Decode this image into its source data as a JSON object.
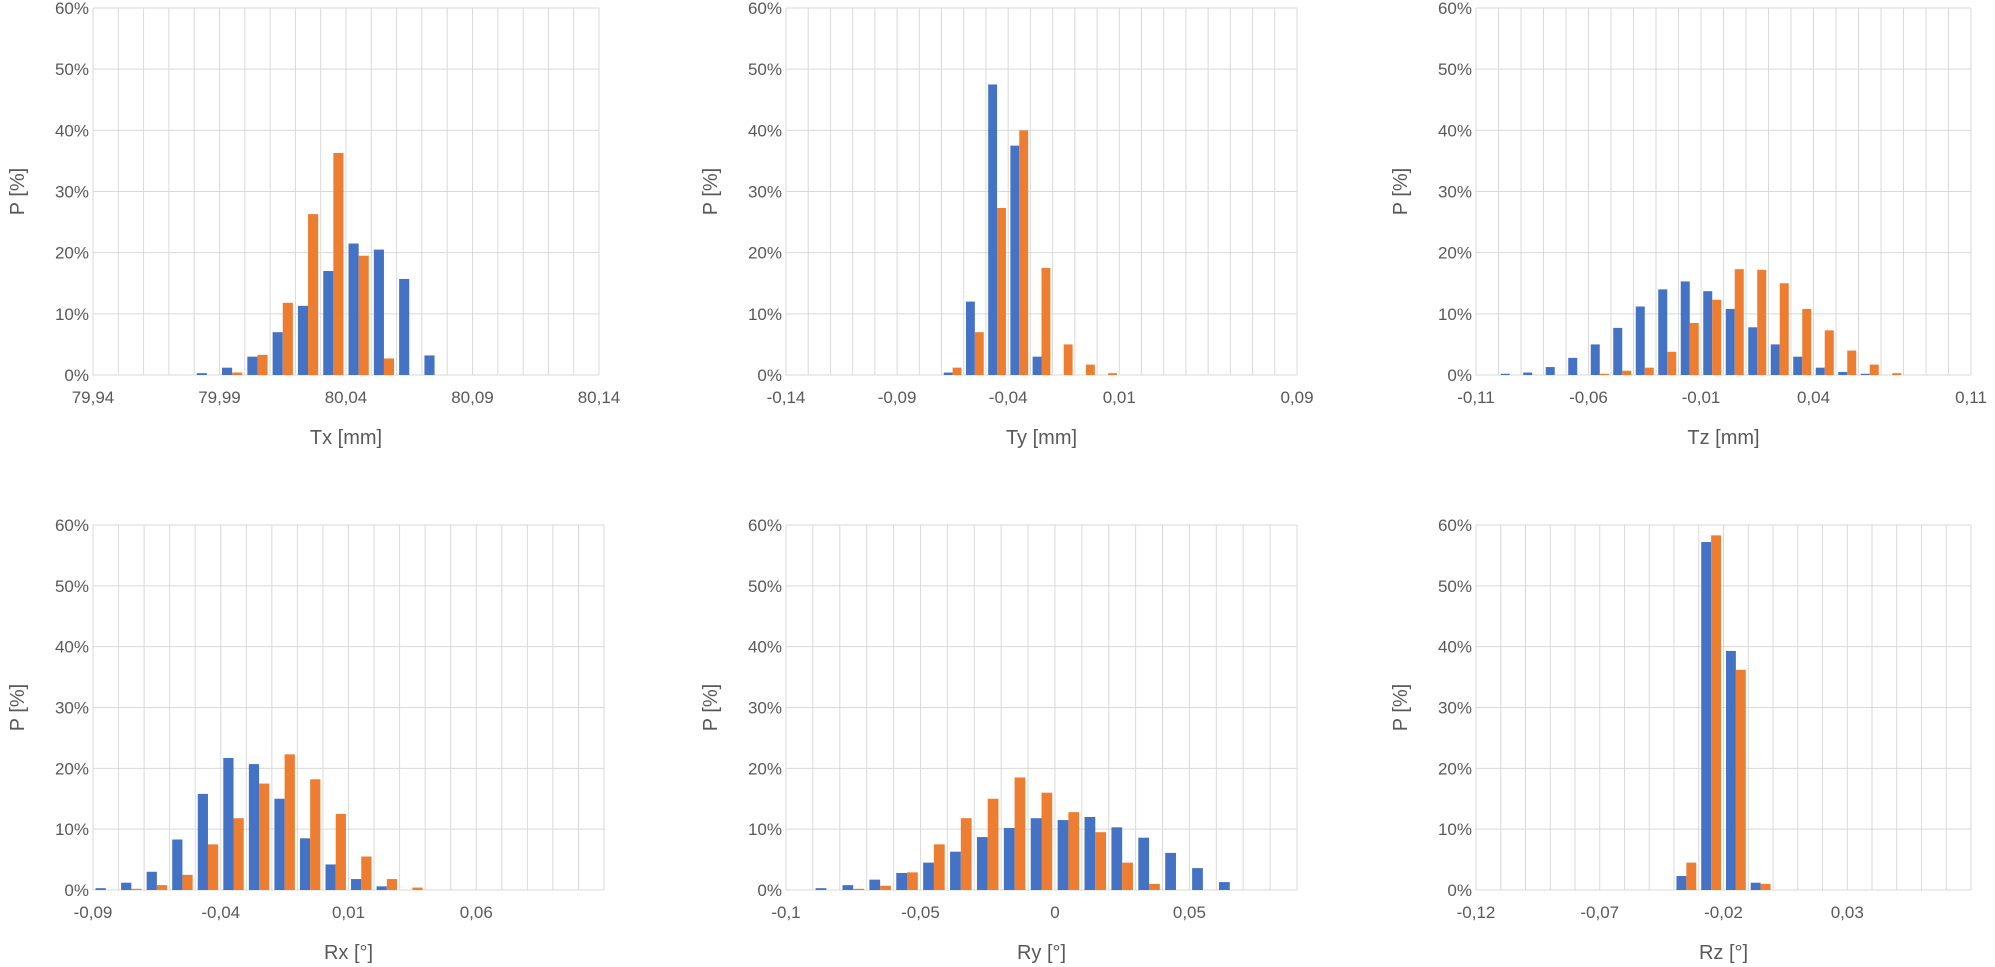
{
  "colors": {
    "series_a": "#4472c4",
    "series_b": "#ed7d31",
    "grid": "#d9d9d9",
    "text": "#595959"
  },
  "chart_data": [
    {
      "type": "bar",
      "xlabel": "Tx [mm]",
      "ylabel": "P [%]",
      "xlim": [
        79.94,
        80.14
      ],
      "ylim": [
        0,
        60
      ],
      "xticks": [
        79.94,
        79.99,
        80.04,
        80.09,
        80.14
      ],
      "xtick_labels": [
        "79,94",
        "79,99",
        "80,04",
        "80,09",
        "80,14"
      ],
      "yticks": [
        0,
        10,
        20,
        30,
        40,
        50,
        60
      ],
      "ytick_labels": [
        "0%",
        "10%",
        "20%",
        "30%",
        "40%",
        "50%",
        "60%"
      ],
      "bin_width": 0.01,
      "grid": true,
      "x": [
        79.94,
        79.95,
        79.96,
        79.97,
        79.98,
        79.99,
        80.0,
        80.01,
        80.02,
        80.03,
        80.04,
        80.05,
        80.06,
        80.07,
        80.08,
        80.09,
        80.1,
        80.11,
        80.12,
        80.13
      ],
      "series": [
        {
          "values": [
            0,
            0,
            0,
            0,
            0.3,
            1.2,
            3,
            7,
            11.3,
            17,
            21.5,
            20.5,
            15.7,
            3.2,
            0,
            0,
            0,
            0,
            0,
            0
          ]
        },
        {
          "values": [
            0,
            0,
            0,
            0,
            0,
            0.4,
            3.3,
            11.8,
            26.3,
            36.3,
            19.5,
            2.7,
            0,
            0,
            0,
            0,
            0,
            0,
            0,
            0
          ]
        }
      ]
    },
    {
      "type": "bar",
      "xlabel": "Ty [mm]",
      "ylabel": "P [%]",
      "xlim": [
        -0.14,
        0.09
      ],
      "ylim": [
        0,
        60
      ],
      "xticks": [
        -0.14,
        -0.09,
        -0.04,
        0.01,
        0.09
      ],
      "xtick_labels": [
        "-0,14",
        "-0,09",
        "-0,04",
        "0,01",
        "0,09"
      ],
      "yticks": [
        0,
        10,
        20,
        30,
        40,
        50,
        60
      ],
      "ytick_labels": [
        "0%",
        "10%",
        "20%",
        "30%",
        "40%",
        "50%",
        "60%"
      ],
      "bin_width": 0.01,
      "grid": true,
      "x": [
        -0.14,
        -0.13,
        -0.12,
        -0.11,
        -0.1,
        -0.09,
        -0.08,
        -0.07,
        -0.06,
        -0.05,
        -0.04,
        -0.03,
        -0.02,
        -0.01,
        0.0,
        0.01,
        0.02,
        0.03,
        0.04,
        0.05,
        0.06,
        0.07,
        0.08
      ],
      "series": [
        {
          "values": [
            0,
            0,
            0,
            0,
            0,
            0,
            0,
            0.4,
            12,
            47.5,
            37.5,
            3,
            0,
            0,
            0,
            0,
            0,
            0,
            0,
            0,
            0,
            0,
            0
          ]
        },
        {
          "values": [
            0,
            0,
            0,
            0,
            0,
            0,
            0,
            1.2,
            7,
            27.3,
            40,
            17.5,
            5,
            1.7,
            0.3,
            0,
            0,
            0,
            0,
            0,
            0,
            0,
            0
          ]
        }
      ]
    },
    {
      "type": "bar",
      "xlabel": "Tz [mm]",
      "ylabel": "P [%]",
      "xlim": [
        -0.11,
        0.11
      ],
      "ylim": [
        0,
        60
      ],
      "xticks": [
        -0.11,
        -0.06,
        -0.01,
        0.04,
        0.11
      ],
      "xtick_labels": [
        "-0,11",
        "-0,06",
        "-0,01",
        "0,04",
        "0,11"
      ],
      "yticks": [
        0,
        10,
        20,
        30,
        40,
        50,
        60
      ],
      "ytick_labels": [
        "0%",
        "10%",
        "20%",
        "30%",
        "40%",
        "50%",
        "60%"
      ],
      "bin_width": 0.01,
      "grid": true,
      "x": [
        -0.11,
        -0.1,
        -0.09,
        -0.08,
        -0.07,
        -0.06,
        -0.05,
        -0.04,
        -0.03,
        -0.02,
        -0.01,
        0.0,
        0.01,
        0.02,
        0.03,
        0.04,
        0.05,
        0.06,
        0.07,
        0.08,
        0.09,
        0.1
      ],
      "series": [
        {
          "values": [
            0,
            0.2,
            0.4,
            1.3,
            2.8,
            5,
            7.7,
            11.2,
            14,
            15.3,
            13.7,
            10.8,
            7.8,
            5,
            3,
            1.2,
            0.5,
            0.2,
            0,
            0,
            0,
            0
          ]
        },
        {
          "values": [
            0,
            0,
            0,
            0,
            0,
            0.2,
            0.7,
            1.2,
            3.8,
            8.5,
            12.3,
            17.3,
            17.2,
            15,
            10.8,
            7.3,
            4,
            1.7,
            0.3,
            0,
            0,
            0
          ]
        }
      ]
    },
    {
      "type": "bar",
      "xlabel": "Rx [°]",
      "ylabel": "P [%]",
      "xlim": [
        -0.09,
        0.11
      ],
      "ylim": [
        0,
        60
      ],
      "xticks": [
        -0.09,
        -0.04,
        0.01,
        0.06
      ],
      "xtick_labels": [
        "-0,09",
        "-0,04",
        "0,01",
        "0,06"
      ],
      "yticks": [
        0,
        10,
        20,
        30,
        40,
        50,
        60
      ],
      "ytick_labels": [
        "0%",
        "10%",
        "20%",
        "30%",
        "40%",
        "50%",
        "60%"
      ],
      "bin_width": 0.01,
      "grid": true,
      "x": [
        -0.09,
        -0.08,
        -0.07,
        -0.06,
        -0.05,
        -0.04,
        -0.03,
        -0.02,
        -0.01,
        0.0,
        0.01,
        0.02,
        0.03,
        0.04,
        0.05,
        0.06,
        0.07,
        0.08,
        0.09,
        0.1
      ],
      "series": [
        {
          "values": [
            0.3,
            1.2,
            3,
            8.3,
            15.8,
            21.7,
            20.7,
            15,
            8.5,
            4.2,
            1.8,
            0.6,
            0,
            0,
            0,
            0,
            0,
            0,
            0,
            0
          ]
        },
        {
          "values": [
            0,
            0.2,
            0.8,
            2.5,
            7.5,
            11.8,
            17.5,
            22.3,
            18.2,
            12.5,
            5.5,
            1.8,
            0.4,
            0,
            0,
            0,
            0,
            0,
            0,
            0
          ]
        }
      ]
    },
    {
      "type": "bar",
      "xlabel": "Ry [°]",
      "ylabel": "P [%]",
      "xlim": [
        -0.1,
        0.09
      ],
      "ylim": [
        0,
        60
      ],
      "xticks": [
        -0.1,
        -0.05,
        0,
        0.05
      ],
      "xtick_labels": [
        "-0,1",
        "-0,05",
        "0",
        "0,05"
      ],
      "yticks": [
        0,
        10,
        20,
        30,
        40,
        50,
        60
      ],
      "ytick_labels": [
        "0%",
        "10%",
        "20%",
        "30%",
        "40%",
        "50%",
        "60%"
      ],
      "bin_width": 0.01,
      "grid": true,
      "x": [
        -0.1,
        -0.09,
        -0.08,
        -0.07,
        -0.06,
        -0.05,
        -0.04,
        -0.03,
        -0.02,
        -0.01,
        0.0,
        0.01,
        0.02,
        0.03,
        0.04,
        0.05,
        0.06,
        0.07,
        0.08
      ],
      "series": [
        {
          "values": [
            0,
            0.3,
            0.8,
            1.7,
            2.8,
            4.5,
            6.3,
            8.7,
            10.2,
            11.8,
            11.5,
            12,
            10.3,
            8.6,
            6.1,
            3.6,
            1.3,
            0,
            0
          ]
        },
        {
          "values": [
            0,
            0,
            0.2,
            0.7,
            2.9,
            7.5,
            11.8,
            15,
            18.5,
            16,
            12.8,
            9.5,
            4.5,
            1,
            0,
            0,
            0,
            0,
            0
          ]
        }
      ]
    },
    {
      "type": "bar",
      "xlabel": "Rz [°]",
      "ylabel": "P [%]",
      "xlim": [
        -0.12,
        0.08
      ],
      "ylim": [
        0,
        60
      ],
      "xticks": [
        -0.12,
        -0.07,
        -0.02,
        0.03
      ],
      "xtick_labels": [
        "-0,12",
        "-0,07",
        "-0,02",
        "0,03"
      ],
      "yticks": [
        0,
        10,
        20,
        30,
        40,
        50,
        60
      ],
      "ytick_labels": [
        "0%",
        "10%",
        "20%",
        "30%",
        "40%",
        "50%",
        "60%"
      ],
      "bin_width": 0.01,
      "grid": true,
      "x": [
        -0.12,
        -0.11,
        -0.1,
        -0.09,
        -0.08,
        -0.07,
        -0.06,
        -0.05,
        -0.04,
        -0.03,
        -0.02,
        -0.01,
        0.0,
        0.01,
        0.02,
        0.03,
        0.04,
        0.05,
        0.06,
        0.07
      ],
      "series": [
        {
          "values": [
            0,
            0,
            0,
            0,
            0,
            0,
            0,
            0,
            2.3,
            57.2,
            39.3,
            1.2,
            0,
            0,
            0,
            0,
            0,
            0,
            0,
            0
          ]
        },
        {
          "values": [
            0,
            0,
            0,
            0,
            0,
            0,
            0,
            0,
            4.5,
            58.3,
            36.2,
            1,
            0,
            0,
            0,
            0,
            0,
            0,
            0,
            0
          ]
        }
      ]
    }
  ]
}
